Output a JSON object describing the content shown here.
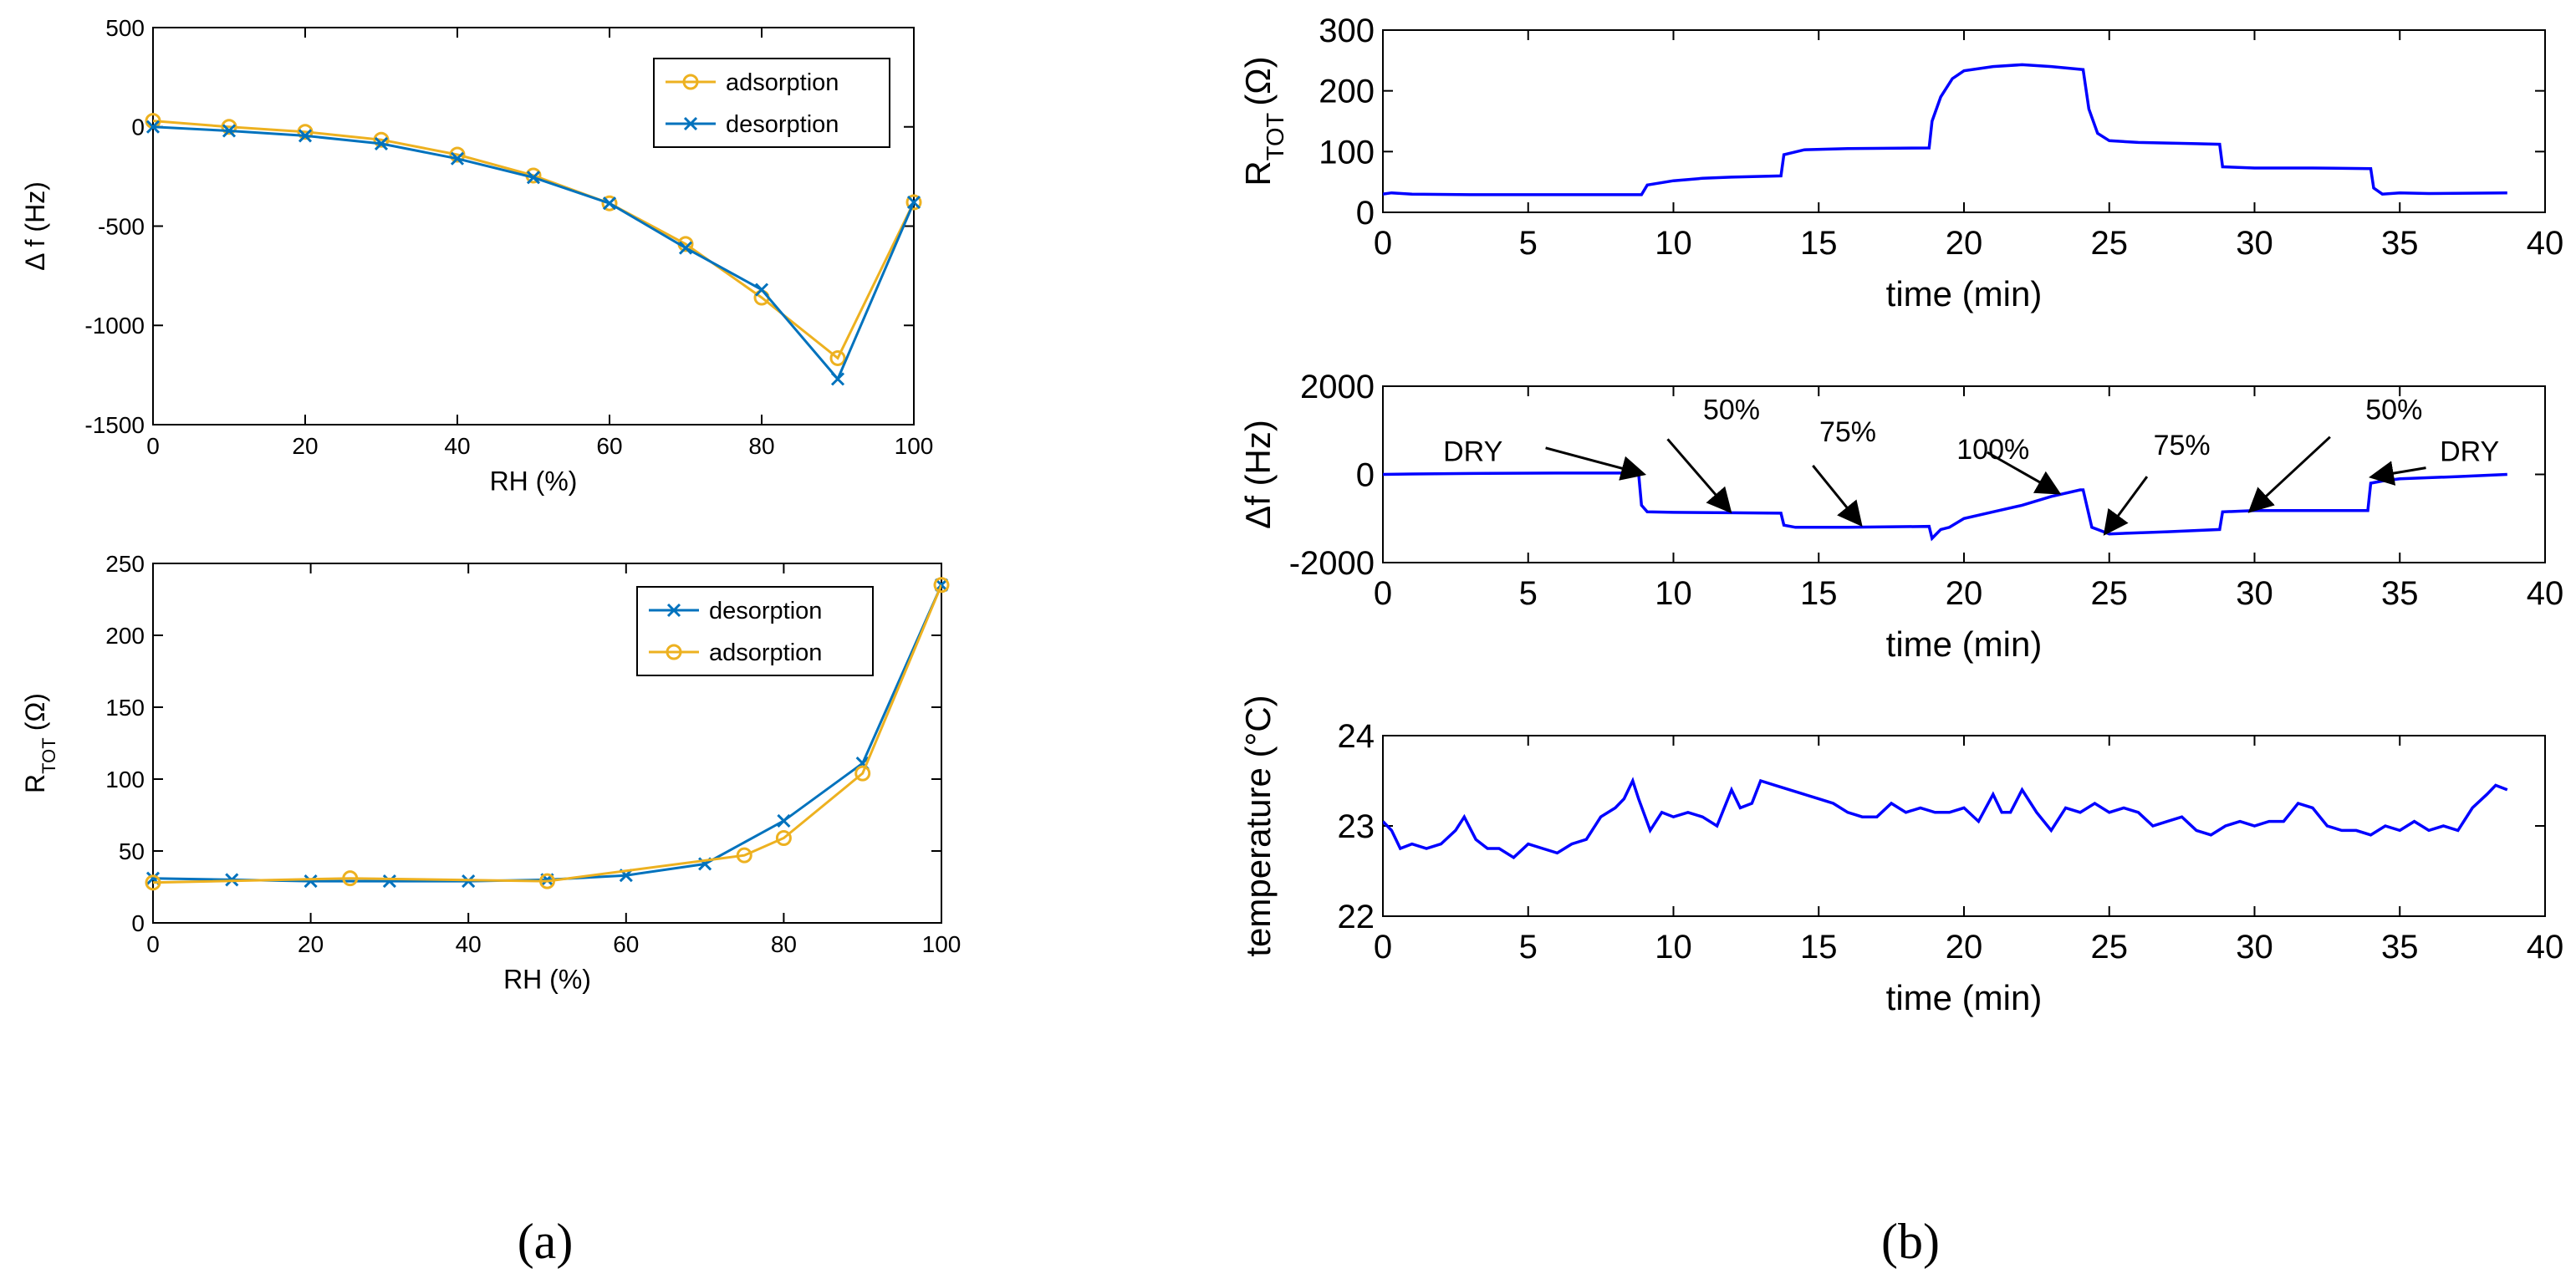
{
  "colors": {
    "adsorption": "#EDB120",
    "desorption": "#0072BD",
    "trace": "#0000FF",
    "axis": "#000000"
  },
  "panel_labels": {
    "a": "(a)",
    "b": "(b)"
  },
  "chart_data": [
    {
      "id": "a1",
      "type": "line",
      "title": "",
      "xlabel": "RH (%)",
      "ylabel": "Δ f (Hz)",
      "xlim": [
        0,
        100
      ],
      "ylim": [
        -1500,
        500
      ],
      "xticks": [
        0,
        20,
        40,
        60,
        80,
        100
      ],
      "yticks": [
        -1500,
        -1000,
        -500,
        0,
        500
      ],
      "legend_position": "top-right",
      "grid": false,
      "series": [
        {
          "name": "adsorption",
          "marker": "o",
          "color": "#EDB120",
          "x": [
            0,
            10,
            20,
            30,
            40,
            50,
            60,
            70,
            80,
            90,
            100
          ],
          "y": [
            30,
            0,
            -25,
            -65,
            -140,
            -245,
            -385,
            -590,
            -860,
            -1165,
            -380
          ]
        },
        {
          "name": "desorption",
          "marker": "x",
          "color": "#0072BD",
          "x": [
            0,
            10,
            20,
            30,
            40,
            50,
            60,
            70,
            80,
            90,
            100
          ],
          "y": [
            0,
            -20,
            -45,
            -85,
            -160,
            -255,
            -385,
            -610,
            -820,
            -1270,
            -380
          ]
        }
      ]
    },
    {
      "id": "a2",
      "type": "line",
      "title": "",
      "xlabel": "RH (%)",
      "ylabel": "R",
      "ylabel_sub": "TOT",
      "ylabel_suffix": "(Ω)",
      "xlim": [
        0,
        100
      ],
      "ylim": [
        0,
        250
      ],
      "xticks": [
        0,
        20,
        40,
        60,
        80,
        100
      ],
      "yticks": [
        0,
        50,
        100,
        150,
        200,
        250
      ],
      "legend_position": "top-right",
      "grid": false,
      "series": [
        {
          "name": "desorption",
          "marker": "x",
          "color": "#0072BD",
          "x": [
            0,
            10,
            20,
            30,
            40,
            50,
            60,
            70,
            80,
            90,
            100
          ],
          "y": [
            31,
            30,
            29,
            29,
            29,
            30,
            33,
            41,
            71,
            111,
            235
          ]
        },
        {
          "name": "adsorption",
          "marker": "o",
          "color": "#EDB120",
          "x": [
            0,
            25,
            50,
            75,
            80,
            90,
            100
          ],
          "y": [
            28,
            31,
            29,
            47,
            59,
            104,
            235
          ]
        }
      ]
    },
    {
      "id": "b1",
      "type": "line",
      "title": "",
      "xlabel": "time (min)",
      "ylabel": "R",
      "ylabel_sub": "TOT",
      "ylabel_suffix": "(Ω)",
      "xlim": [
        0,
        40
      ],
      "ylim": [
        0,
        300
      ],
      "xticks": [
        0,
        5,
        10,
        15,
        20,
        25,
        30,
        35,
        40
      ],
      "yticks": [
        0,
        100,
        200,
        300
      ],
      "grid": false,
      "series": [
        {
          "name": "R_TOT",
          "color": "#0000FF",
          "x": [
            0,
            0.3,
            1,
            3,
            6,
            8.9,
            9.1,
            10,
            11,
            12,
            13.7,
            13.8,
            14.5,
            16,
            18.8,
            18.9,
            19.2,
            19.6,
            20,
            21,
            22,
            23,
            24.1,
            24.3,
            24.6,
            25,
            26,
            28,
            28.8,
            28.9,
            30,
            32,
            34,
            34.1,
            34.4,
            35,
            36,
            38.7
          ],
          "y": [
            30,
            32,
            30,
            29,
            29,
            29,
            45,
            52,
            56,
            58,
            60,
            95,
            103,
            105,
            106,
            150,
            190,
            220,
            233,
            240,
            243,
            240,
            235,
            170,
            130,
            118,
            115,
            113,
            112,
            75,
            73,
            73,
            72,
            40,
            30,
            32,
            31,
            32
          ]
        }
      ]
    },
    {
      "id": "b2",
      "type": "line",
      "title": "",
      "xlabel": "time (min)",
      "ylabel": "Δf (Hz)",
      "xlim": [
        0,
        40
      ],
      "ylim": [
        -2000,
        2000
      ],
      "xticks": [
        0,
        5,
        10,
        15,
        20,
        25,
        30,
        35,
        40
      ],
      "yticks": [
        -2000,
        0,
        2000
      ],
      "grid": false,
      "series": [
        {
          "name": "Δf",
          "color": "#0000FF",
          "x": [
            0,
            1,
            3,
            6,
            8.8,
            8.9,
            9.1,
            10,
            12,
            13.7,
            13.8,
            14.2,
            16,
            18.8,
            18.9,
            19.2,
            19.5,
            20,
            21,
            22,
            23,
            24,
            24.1,
            24.4,
            25,
            27,
            28.8,
            28.9,
            30,
            32,
            33.9,
            34,
            34.4,
            35,
            37,
            38.7
          ],
          "y": [
            0,
            10,
            20,
            30,
            30,
            -700,
            -850,
            -860,
            -870,
            -880,
            -1150,
            -1200,
            -1200,
            -1180,
            -1450,
            -1250,
            -1200,
            -1000,
            -850,
            -700,
            -500,
            -350,
            -350,
            -1200,
            -1350,
            -1300,
            -1250,
            -850,
            -820,
            -820,
            -820,
            -200,
            -150,
            -100,
            -50,
            0
          ]
        }
      ],
      "annotations": [
        {
          "text": "DRY",
          "x": 3.1,
          "y": 300,
          "arrow_from": [
            5.6,
            600
          ],
          "arrow_to": [
            8.9,
            20
          ]
        },
        {
          "text": "50%",
          "x": 12.0,
          "y": 1250,
          "arrow_from": [
            9.8,
            800
          ],
          "arrow_to": [
            11.9,
            -800
          ]
        },
        {
          "text": "75%",
          "x": 16.0,
          "y": 750,
          "arrow_from": [
            14.8,
            200
          ],
          "arrow_to": [
            16.4,
            -1100
          ]
        },
        {
          "text": "100%",
          "x": 21.0,
          "y": 350,
          "arrow_from": [
            20.8,
            500
          ],
          "arrow_to": [
            23.2,
            -400
          ]
        },
        {
          "text": "75%",
          "x": 27.5,
          "y": 450,
          "arrow_from": [
            26.3,
            -50
          ],
          "arrow_to": [
            24.9,
            -1300
          ]
        },
        {
          "text": "50%",
          "x": 34.8,
          "y": 1250,
          "arrow_from": [
            32.6,
            850
          ],
          "arrow_to": [
            29.9,
            -800
          ]
        },
        {
          "text": "DRY",
          "x": 37.4,
          "y": 300,
          "arrow_from": [
            35.9,
            150
          ],
          "arrow_to": [
            34.1,
            -50
          ]
        }
      ]
    },
    {
      "id": "b3",
      "type": "line",
      "title": "",
      "xlabel": "time (min)",
      "ylabel": "temperature (°C)",
      "xlim": [
        0,
        40
      ],
      "ylim": [
        22,
        24
      ],
      "xticks": [
        0,
        5,
        10,
        15,
        20,
        25,
        30,
        35,
        40
      ],
      "yticks": [
        22,
        23,
        24
      ],
      "grid": false,
      "series": [
        {
          "name": "temperature",
          "color": "#0000FF",
          "x": [
            0,
            0.3,
            0.6,
            1,
            1.5,
            2,
            2.5,
            2.8,
            3.2,
            3.6,
            4,
            4.5,
            5,
            5.5,
            6,
            6.5,
            7,
            7.5,
            8,
            8.3,
            8.6,
            8.8,
            9.2,
            9.6,
            10,
            10.5,
            11,
            11.5,
            12,
            12.3,
            12.7,
            13,
            13.5,
            14,
            14.5,
            15,
            15.5,
            16,
            16.5,
            17,
            17.5,
            18,
            18.5,
            19,
            19.5,
            20,
            20.5,
            21,
            21.3,
            21.6,
            22,
            22.5,
            23,
            23.5,
            24,
            24.5,
            25,
            25.5,
            26,
            26.5,
            27,
            27.5,
            28,
            28.5,
            29,
            29.5,
            30,
            30.5,
            31,
            31.5,
            32,
            32.5,
            33,
            33.5,
            34,
            34.5,
            35,
            35.5,
            36,
            36.5,
            37,
            37.5,
            38,
            38.3,
            38.7
          ],
          "y": [
            23.05,
            22.95,
            22.75,
            22.8,
            22.75,
            22.8,
            22.95,
            23.1,
            22.85,
            22.75,
            22.75,
            22.65,
            22.8,
            22.75,
            22.7,
            22.8,
            22.85,
            23.1,
            23.2,
            23.3,
            23.5,
            23.3,
            22.95,
            23.15,
            23.1,
            23.15,
            23.1,
            23.0,
            23.4,
            23.2,
            23.25,
            23.5,
            23.45,
            23.4,
            23.35,
            23.3,
            23.25,
            23.15,
            23.1,
            23.1,
            23.25,
            23.15,
            23.2,
            23.15,
            23.15,
            23.2,
            23.05,
            23.35,
            23.15,
            23.15,
            23.4,
            23.15,
            22.95,
            23.2,
            23.15,
            23.25,
            23.15,
            23.2,
            23.15,
            23.0,
            23.05,
            23.1,
            22.95,
            22.9,
            23.0,
            23.05,
            23.0,
            23.05,
            23.05,
            23.25,
            23.2,
            23.0,
            22.95,
            22.95,
            22.9,
            23.0,
            22.95,
            23.05,
            22.95,
            23.0,
            22.95,
            23.2,
            23.35,
            23.45,
            23.4
          ]
        }
      ]
    }
  ]
}
